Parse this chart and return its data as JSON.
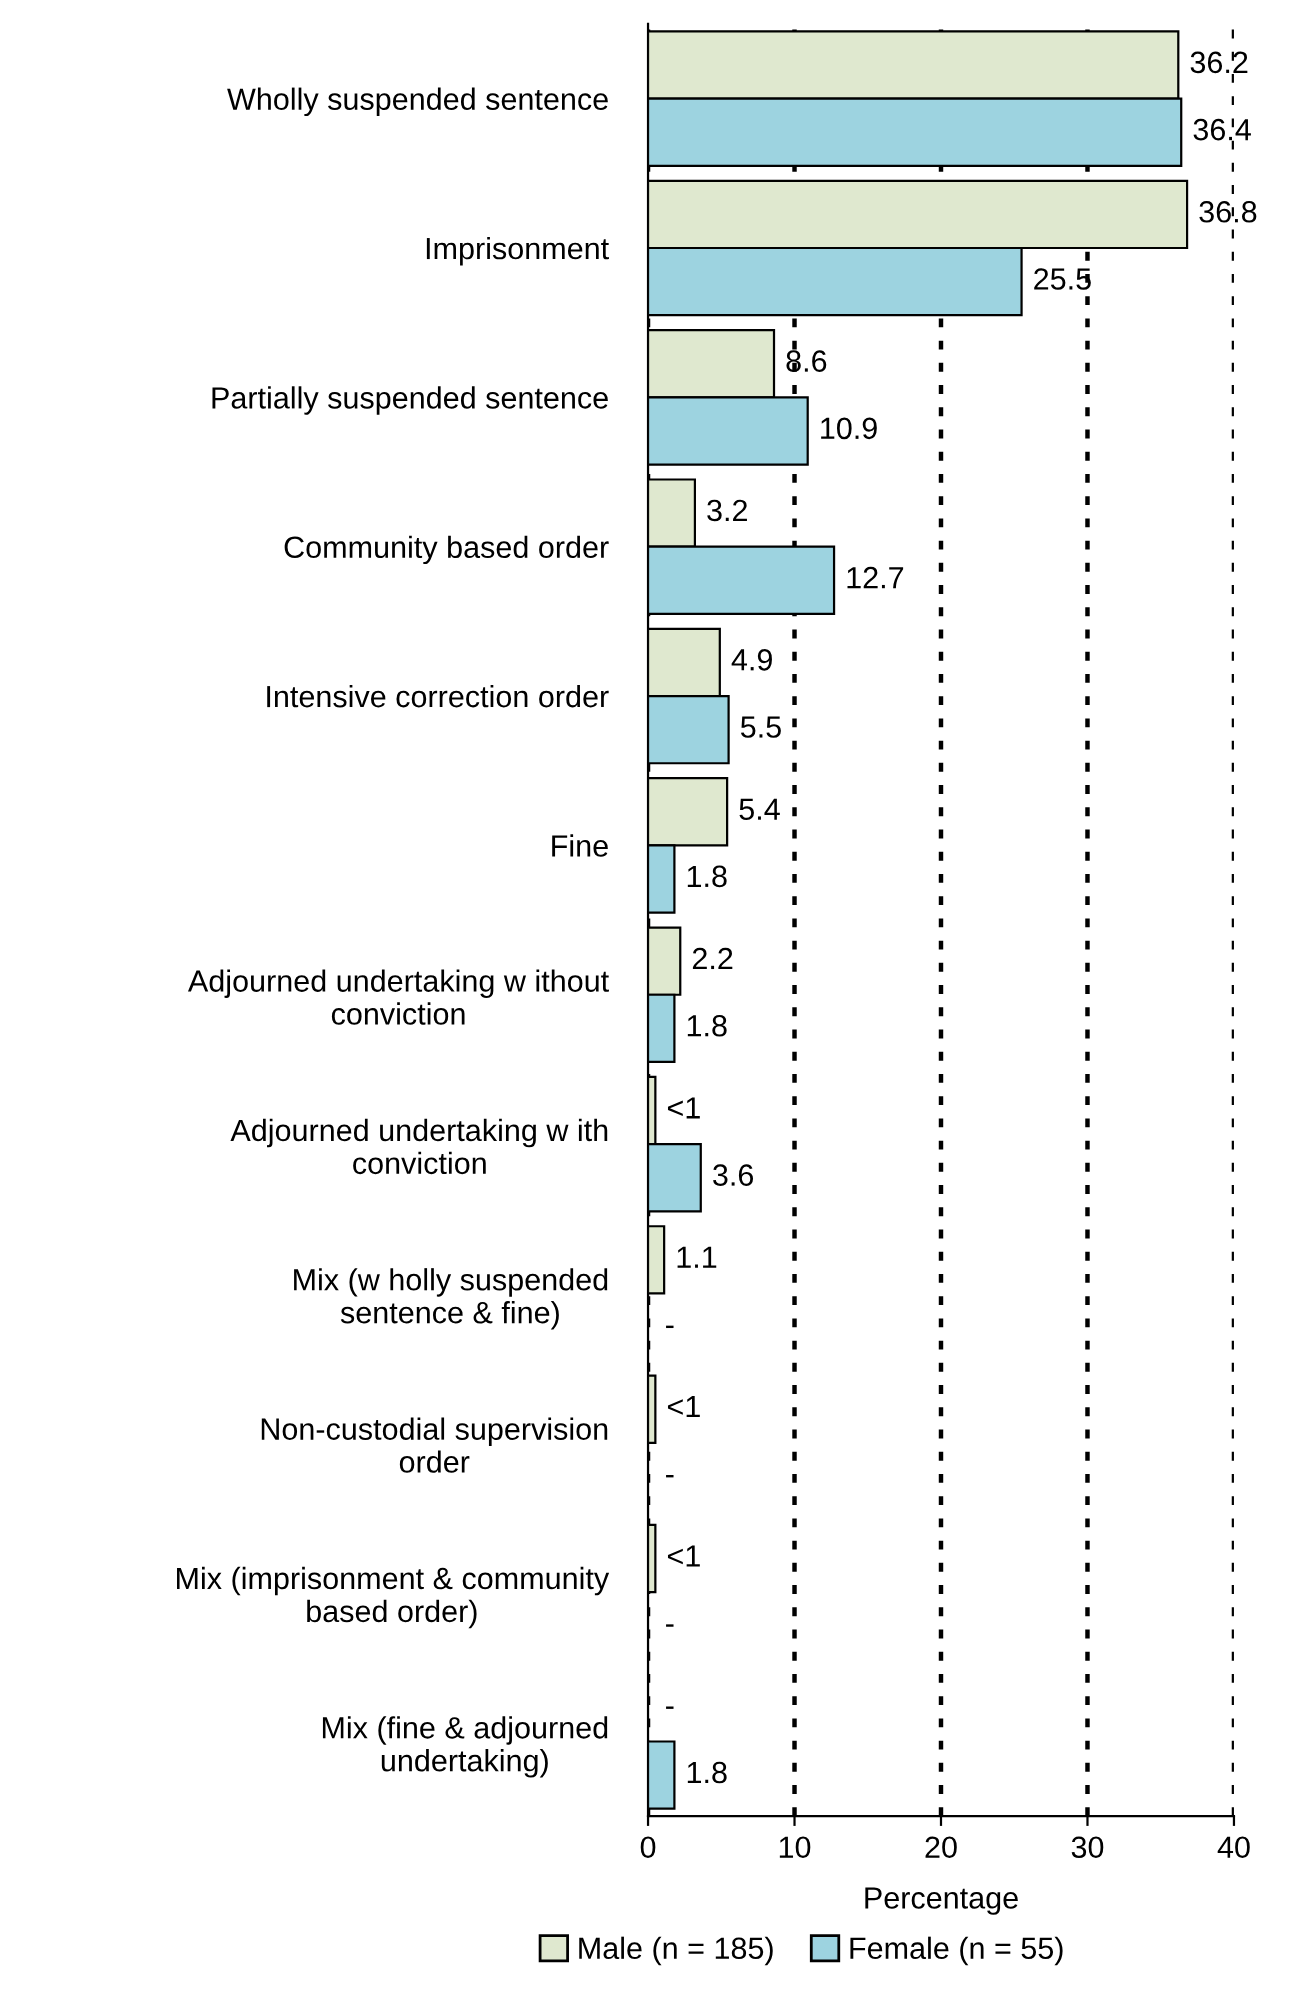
{
  "chart_data": {
    "type": "bar",
    "orientation": "horizontal",
    "xlabel": "Percentage",
    "categories": [
      "Wholly suspended sentence",
      "Imprisonment",
      "Partially suspended sentence",
      "Community based order",
      "Intensive correction order",
      "Fine",
      "Adjourned undertaking w ithout\nconviction",
      "Adjourned undertaking w ith\nconviction",
      "Mix (w holly suspended\nsentence & fine)",
      "Non-custodial supervision\norder",
      "Mix (imprisonment & community\nbased order)",
      "Mix (fine & adjourned\nundertaking)"
    ],
    "series": [
      {
        "name": "Male (n = 185)",
        "color": "#dfe8cf",
        "values": [
          36.2,
          36.8,
          8.6,
          3.2,
          4.9,
          5.4,
          2.2,
          0.5,
          1.1,
          0.5,
          0.5,
          null
        ],
        "value_labels": [
          "36.2",
          "36.8",
          "8.6",
          "3.2",
          "4.9",
          "5.4",
          "2.2",
          "<1",
          "1.1",
          "<1",
          "<1",
          "-"
        ]
      },
      {
        "name": "Female (n = 55)",
        "color": "#9dd3e0",
        "values": [
          36.4,
          25.5,
          10.9,
          12.7,
          5.5,
          1.8,
          1.8,
          3.6,
          null,
          null,
          null,
          1.8
        ],
        "value_labels": [
          "36.4",
          "25.5",
          "10.9",
          "12.7",
          "5.5",
          "1.8",
          "1.8",
          "3.6",
          "-",
          "-",
          "-",
          "1.8"
        ]
      }
    ],
    "xlim": [
      0,
      40
    ],
    "xticks": [
      0,
      10,
      20,
      30,
      40
    ],
    "grid": "x",
    "legend": "bottom"
  }
}
